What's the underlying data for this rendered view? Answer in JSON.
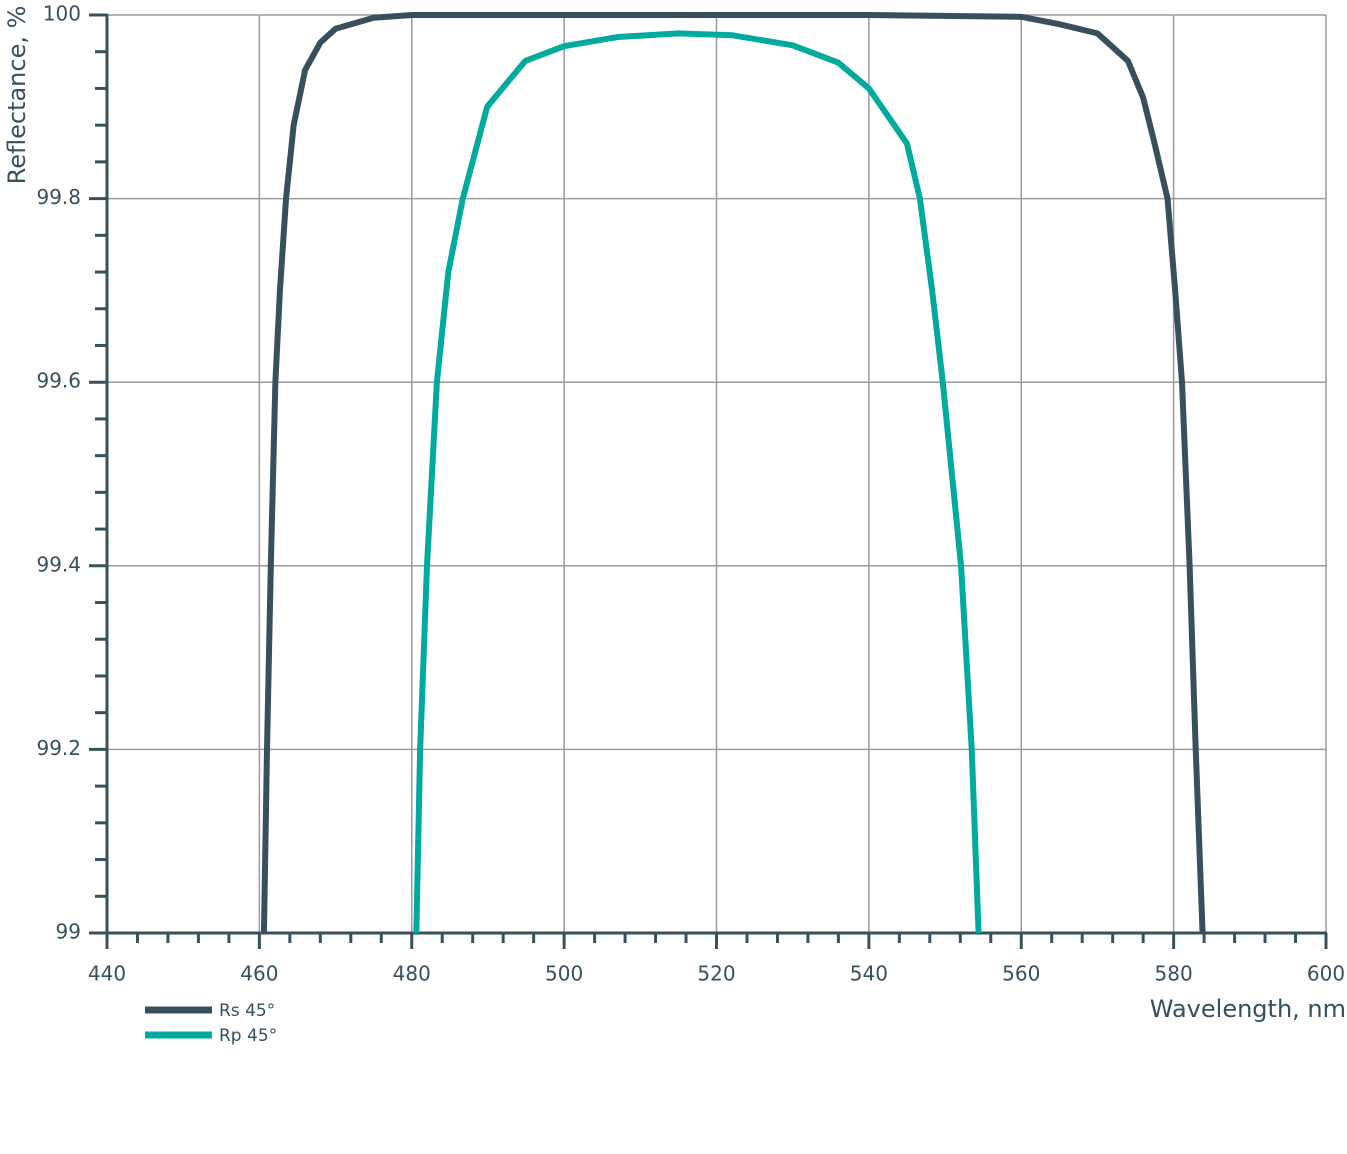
{
  "chart_data": {
    "type": "line",
    "y_label": "Reflectance, %",
    "x_label": "Wavelength, nm",
    "xlim": [
      440,
      600
    ],
    "xticks": [
      440,
      460,
      480,
      500,
      520,
      540,
      560,
      580,
      600
    ],
    "xminorticks": [
      444,
      448,
      452,
      456,
      464,
      468,
      472,
      476,
      484,
      488,
      492,
      496,
      504,
      508,
      512,
      516,
      524,
      528,
      532,
      536,
      544,
      548,
      552,
      556,
      564,
      568,
      572,
      576,
      584,
      588,
      592,
      596
    ],
    "ylim": [
      99,
      100
    ],
    "yticks": [
      99,
      99.2,
      99.4,
      99.6,
      99.8,
      100
    ],
    "yminorticks": [
      99.04,
      99.08,
      99.12,
      99.16,
      99.24,
      99.28,
      99.32,
      99.36,
      99.44,
      99.48,
      99.52,
      99.56,
      99.64,
      99.68,
      99.72,
      99.76,
      99.84,
      99.88,
      99.92,
      99.96
    ],
    "grid": true,
    "series": [
      {
        "name": "Rs 45°",
        "color": "#37505c",
        "x": [
          460.6,
          461.0,
          461.5,
          462.1,
          462.7,
          463.5,
          464.5,
          466,
          468,
          470,
          475,
          480,
          500,
          520,
          540,
          560,
          565,
          570,
          574,
          576,
          577.5,
          579.2,
          580.2,
          581.1,
          582.1,
          582.9,
          583.8
        ],
        "values": [
          99.0,
          99.2,
          99.4,
          99.6,
          99.7,
          99.8,
          99.88,
          99.94,
          99.97,
          99.985,
          99.997,
          100,
          100,
          100,
          100,
          99.998,
          99.99,
          99.98,
          99.95,
          99.91,
          99.86,
          99.8,
          99.7,
          99.6,
          99.4,
          99.2,
          99.0
        ]
      },
      {
        "name": "Rp 45°",
        "color": "#00ab9e",
        "x": [
          480.6,
          481.1,
          482.0,
          483.3,
          484.8,
          486.7,
          489.9,
          494.9,
          500,
          507,
          515,
          522,
          530,
          536,
          540,
          545,
          546.7,
          548.3,
          549.7,
          552.1,
          553.5,
          554.4
        ],
        "values": [
          99.0,
          99.2,
          99.4,
          99.6,
          99.72,
          99.8,
          99.9,
          99.95,
          99.966,
          99.976,
          99.98,
          99.978,
          99.967,
          99.948,
          99.92,
          99.86,
          99.8,
          99.7,
          99.6,
          99.4,
          99.2,
          99.0
        ]
      }
    ]
  }
}
